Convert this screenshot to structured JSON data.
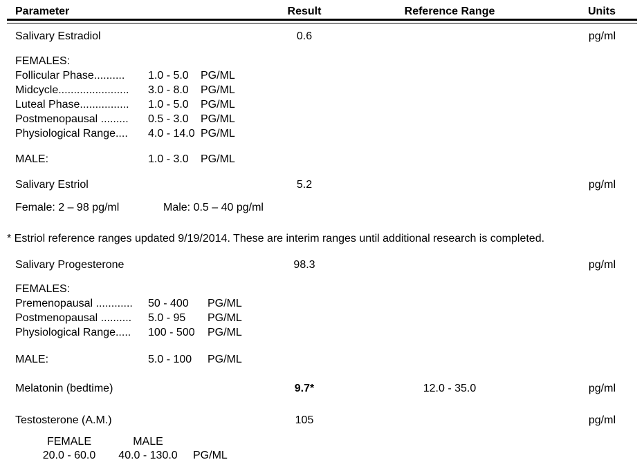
{
  "colors": {
    "text": "#000000",
    "background": "#ffffff"
  },
  "header": {
    "parameter": "Parameter",
    "result": "Result",
    "reference_range": "Reference Range",
    "units": "Units"
  },
  "estradiol": {
    "parameter": "Salivary Estradiol",
    "result": "0.6",
    "units": "pg/ml",
    "females_heading": "FEMALES:",
    "female_ranges": [
      {
        "label": "Follicular Phase..........",
        "range": "1.0 - 5.0",
        "unit": "PG/ML"
      },
      {
        "label": "Midcycle.......................",
        "range": "3.0 - 8.0",
        "unit": "PG/ML"
      },
      {
        "label": "Luteal Phase................",
        "range": "1.0 - 5.0",
        "unit": "PG/ML"
      },
      {
        "label": "Postmenopausal .........",
        "range": "0.5 - 3.0",
        "unit": "PG/ML"
      },
      {
        "label": "Physiological Range....",
        "range": "4.0 - 14.0",
        "unit": "PG/ML"
      }
    ],
    "male": {
      "label": "MALE:",
      "range": "1.0 - 3.0",
      "unit": "PG/ML"
    }
  },
  "estriol": {
    "parameter": "Salivary Estriol",
    "result": "5.2",
    "units": "pg/ml",
    "female_note": "Female: 2 – 98 pg/ml",
    "male_note": "Male: 0.5 – 40 pg/ml"
  },
  "footnote": "* Estriol reference ranges updated 9/19/2014. These are interim ranges until additional research is completed.",
  "progesterone": {
    "parameter": "Salivary Progesterone",
    "result": "98.3",
    "units": "pg/ml",
    "females_heading": "FEMALES:",
    "female_ranges": [
      {
        "label": "Premenopausal ............",
        "range": "50 - 400",
        "unit": "PG/ML"
      },
      {
        "label": "Postmenopausal ..........",
        "range": "5.0 - 95",
        "unit": "PG/ML"
      },
      {
        "label": "Physiological Range.....",
        "range": "100 - 500",
        "unit": "PG/ML"
      }
    ],
    "male": {
      "label": "MALE:",
      "range": "5.0 - 100",
      "unit": "PG/ML"
    }
  },
  "melatonin": {
    "parameter": "Melatonin (bedtime)",
    "result": "9.7*",
    "reference_range": "12.0 - 35.0",
    "units": "pg/ml"
  },
  "testosterone": {
    "parameter": "Testosterone (A.M.)",
    "result": "105",
    "units": "pg/ml",
    "ranges": {
      "female_header": "FEMALE",
      "male_header": "MALE",
      "female_range": "20.0 - 60.0",
      "male_range": "40.0 - 130.0",
      "unit": "PG/ML"
    }
  }
}
